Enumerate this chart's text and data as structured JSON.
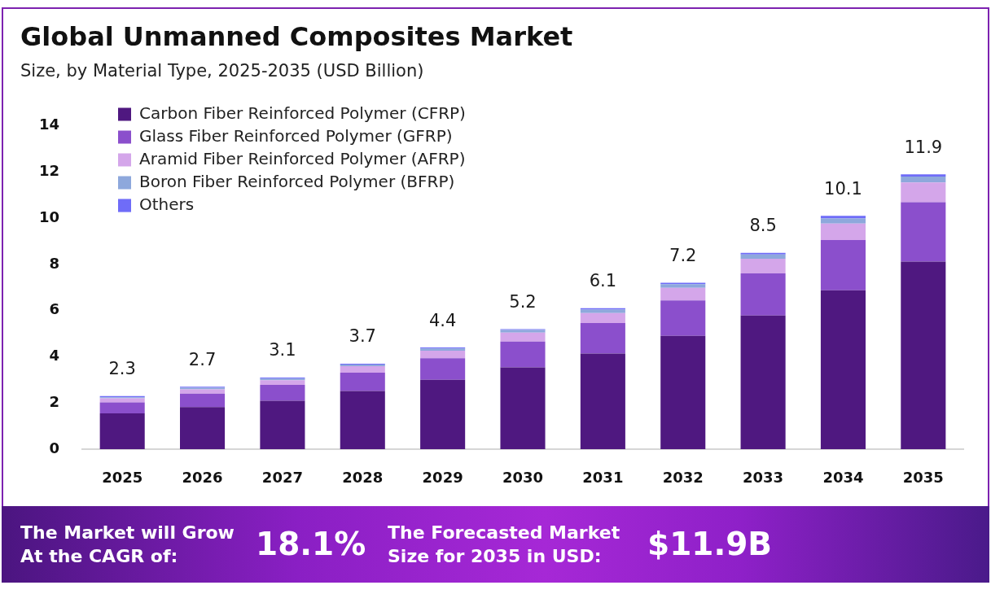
{
  "chart_data": {
    "type": "bar",
    "title": "Global Unmanned Composites Market",
    "subtitle": "Size, by Material Type, 2025-2035 (USD Billion)",
    "categories": [
      "2025",
      "2026",
      "2027",
      "2028",
      "2029",
      "2030",
      "2031",
      "2032",
      "2033",
      "2034",
      "2035"
    ],
    "stacked": true,
    "series": [
      {
        "name": "Carbon Fiber Reinforced Polymer (CFRP)",
        "color": "#4f1880",
        "values": [
          1.55,
          1.82,
          2.1,
          2.52,
          3.0,
          3.54,
          4.14,
          4.91,
          5.79,
          6.88,
          8.12
        ]
      },
      {
        "name": "Glass Fiber Reinforced Polymer (GFRP)",
        "color": "#8b4fcc",
        "values": [
          0.48,
          0.58,
          0.68,
          0.79,
          0.94,
          1.12,
          1.32,
          1.53,
          1.82,
          2.17,
          2.57
        ]
      },
      {
        "name": "Aramid Fiber Reinforced Polymer (AFRP)",
        "color": "#d4a6ea",
        "values": [
          0.17,
          0.19,
          0.21,
          0.28,
          0.32,
          0.39,
          0.43,
          0.54,
          0.63,
          0.72,
          0.86
        ]
      },
      {
        "name": "Boron Fiber Reinforced Polymer (BFRP)",
        "color": "#8ea8dc",
        "values": [
          0.05,
          0.07,
          0.07,
          0.07,
          0.1,
          0.11,
          0.15,
          0.16,
          0.19,
          0.22,
          0.25
        ]
      },
      {
        "name": "Others",
        "color": "#6f6cf8",
        "values": [
          0.05,
          0.04,
          0.04,
          0.04,
          0.04,
          0.04,
          0.06,
          0.06,
          0.07,
          0.11,
          0.1
        ]
      }
    ],
    "ylim": [
      0,
      14
    ],
    "yticks": [
      0,
      2,
      4,
      6,
      8,
      10,
      12,
      14
    ],
    "grid": false,
    "legend": "top left",
    "totals": [
      "2.3",
      "2.7",
      "3.1",
      "3.7",
      "4.4",
      "5.2",
      "6.1",
      "7.2",
      "8.5",
      "10.1",
      "11.9"
    ],
    "annotations": [
      "The Market will Grow At the CAGR of:",
      "18.1%",
      "The Forecasted Market Size for 2035 in USD:",
      "$11.9B"
    ]
  }
}
